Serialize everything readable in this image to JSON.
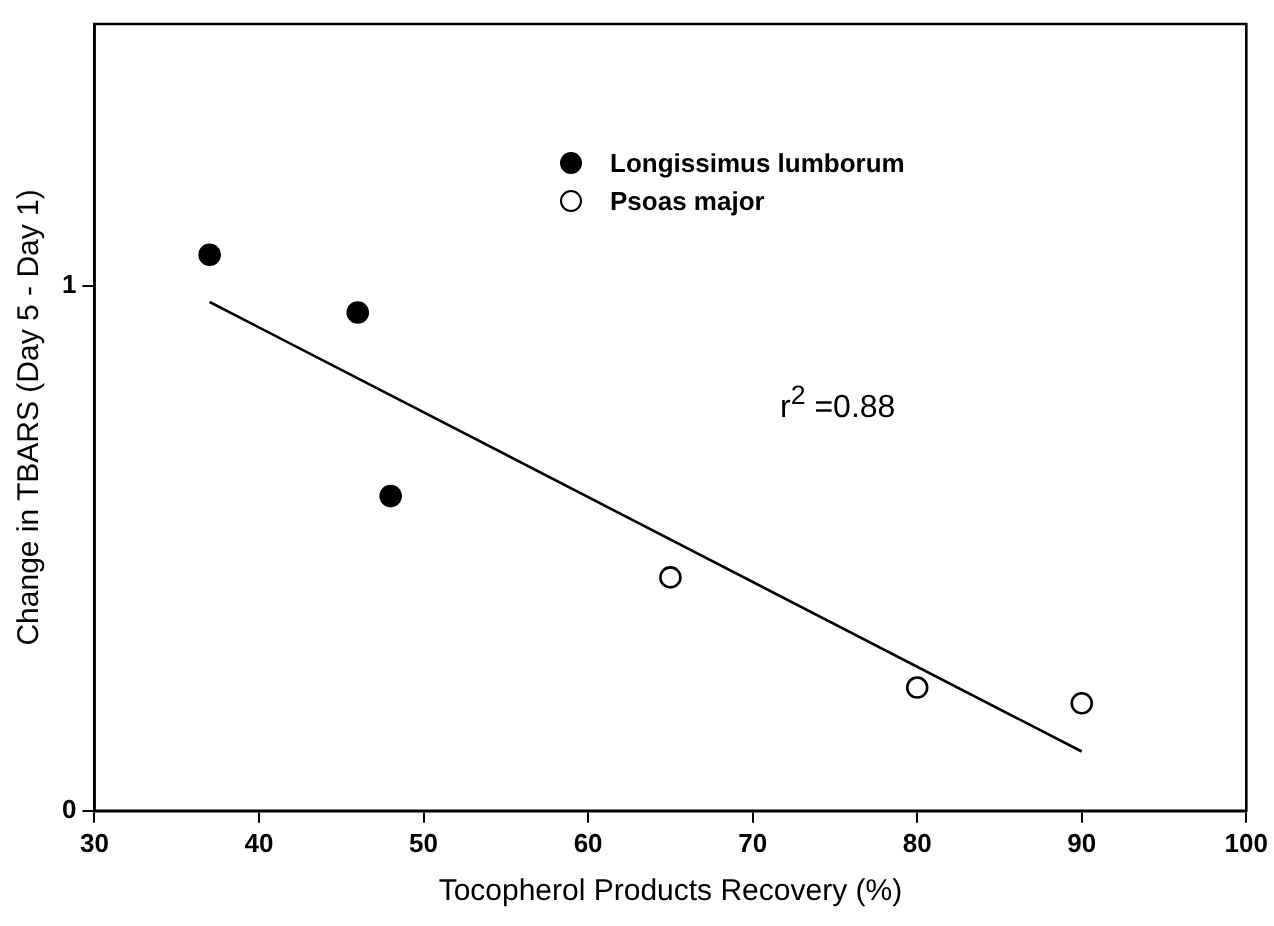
{
  "chart_data": {
    "type": "scatter",
    "xlabel": "Tocopherol Products Recovery (%)",
    "ylabel": "Change in TBARS (Day 5 - Day 1)",
    "xlim": [
      30,
      100
    ],
    "xticks": [
      30,
      40,
      50,
      60,
      70,
      80,
      90,
      100
    ],
    "ylim": [
      0,
      1.5
    ],
    "yticks": [
      0,
      1
    ],
    "series": [
      {
        "name": "Longissimus lumborum",
        "color": "#000000",
        "x": [
          37,
          46,
          48
        ],
        "values": [
          1.06,
          0.95,
          0.6
        ],
        "marker": "circle"
      },
      {
        "name": "Psoas major",
        "color": "#ffffff",
        "x": [
          65,
          80,
          90
        ],
        "values": [
          0.445,
          0.235,
          0.205
        ],
        "marker": "circle"
      },
      {
        "type": "line",
        "color": "#000000",
        "x": [
          37,
          90
        ],
        "values": [
          0.97,
          0.113
        ],
        "marker": "none"
      }
    ],
    "annotations": [
      "r$^{2}$ =0.88"
    ],
    "grid": false,
    "legend": "top"
  }
}
